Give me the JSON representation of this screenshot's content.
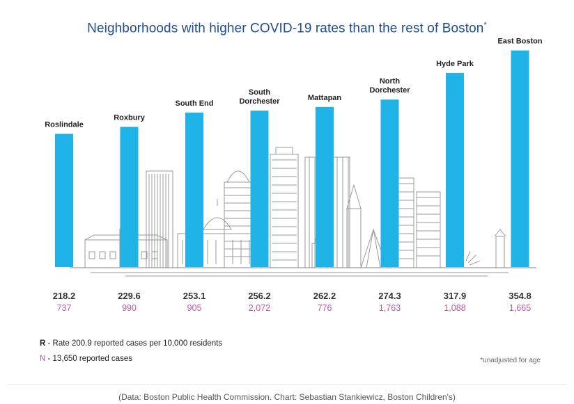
{
  "title": "Neighborhoods with higher COVID-19 rates than the rest of Boston",
  "title_marker": "*",
  "legend": {
    "r_key": "R",
    "r_text": " - Rate 200.9 reported cases per 10,000 residents",
    "n_key": "N",
    "n_text": " - 13,650 reported cases"
  },
  "footnote": "*unadjusted for age",
  "source": "(Data: Boston Public Health Commission. Chart: Sebastian Stankiewicz, Boston Children's)",
  "colors": {
    "bar": "#1fb3e8",
    "rate": "#333333",
    "cases": "#c0569c",
    "title": "#1f4e8c",
    "skyline": "#9a9a9a"
  },
  "chart_data": {
    "type": "bar",
    "categories": [
      "Roslindale",
      "Roxbury",
      "South End",
      "South Dorchester",
      "Mattapan",
      "North Dorchester",
      "Hyde Park",
      "East Boston"
    ],
    "category_lines": [
      [
        "Roslindale"
      ],
      [
        "Roxbury"
      ],
      [
        "South End"
      ],
      [
        "South",
        "Dorchester"
      ],
      [
        "Mattapan"
      ],
      [
        "North",
        "Dorchester"
      ],
      [
        "Hyde Park"
      ],
      [
        "East Boston"
      ]
    ],
    "series": [
      {
        "name": "R",
        "values": [
          218.2,
          229.6,
          253.1,
          256.2,
          262.2,
          274.3,
          317.9,
          354.8
        ]
      },
      {
        "name": "N",
        "values": [
          737,
          990,
          905,
          2072,
          776,
          1763,
          1088,
          1665
        ]
      }
    ],
    "rate_labels": [
      "218.2",
      "229.6",
      "253.1",
      "256.2",
      "262.2",
      "274.3",
      "317.9",
      "354.8"
    ],
    "case_labels": [
      "737",
      "990",
      "905",
      "2,072",
      "776",
      "1,763",
      "1,088",
      "1,665"
    ],
    "ylim": [
      0,
      360
    ],
    "grid": false,
    "legend_position": "bottom-left"
  }
}
